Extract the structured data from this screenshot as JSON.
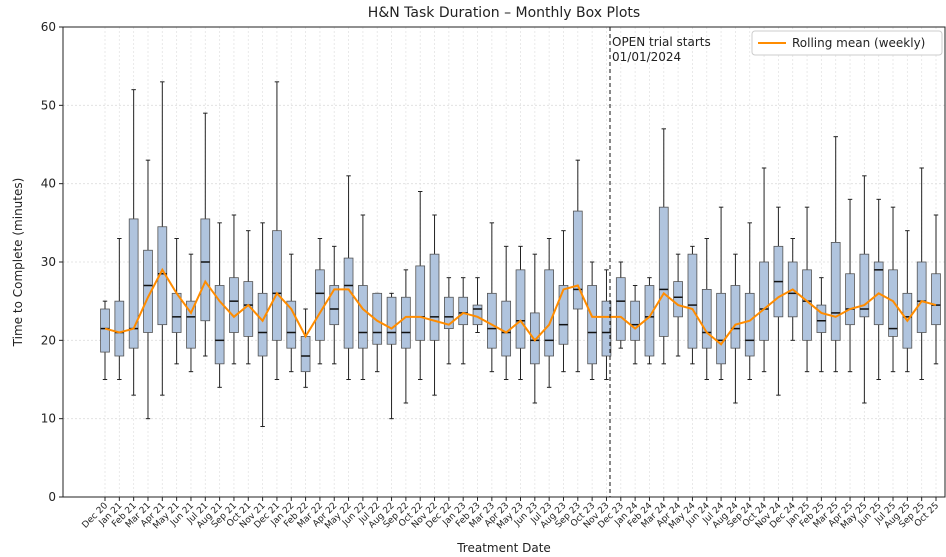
{
  "chart_data": {
    "type": "box",
    "title": "H&N Task Duration – Monthly Box Plots",
    "xlabel": "Treatment Date",
    "ylabel": "Time to Complete (minutes)",
    "categories": [
      "Dec 20",
      "Jan 21",
      "Feb 21",
      "Mar 21",
      "Apr 21",
      "May 21",
      "Jun 21",
      "Jul 21",
      "Aug 21",
      "Sep 21",
      "Oct 21",
      "Nov 21",
      "Dec 21",
      "Jan 22",
      "Feb 22",
      "Mar 22",
      "Apr 22",
      "May 22",
      "Jun 22",
      "Jul 22",
      "Aug 22",
      "Sep 22",
      "Oct 22",
      "Nov 22",
      "Dec 22",
      "Jan 23",
      "Feb 23",
      "Mar 23",
      "Apr 23",
      "May 23",
      "Jun 23",
      "Jul 23",
      "Aug 23",
      "Sep 23",
      "Oct 23",
      "Nov 23",
      "Dec 23",
      "Jan 24",
      "Feb 24",
      "Mar 24",
      "Apr 24",
      "May 24",
      "Jun 24",
      "Jul 24",
      "Aug 24",
      "Sep 24",
      "Oct 24",
      "Nov 24",
      "Dec 24",
      "Jan 25",
      "Feb 25",
      "Mar 25",
      "Apr 25",
      "May 25",
      "Jun 25",
      "Jul 25",
      "Aug 25",
      "Sep 25",
      "Oct 25"
    ],
    "box": {
      "color": "#b0c4de",
      "low": [
        15,
        15,
        13,
        10,
        13,
        17,
        16,
        18,
        14,
        17,
        17,
        9,
        15,
        16,
        14,
        17,
        17,
        15,
        15,
        16,
        10,
        12,
        15,
        13,
        17,
        17,
        21,
        16,
        15,
        15,
        12,
        14,
        16,
        16,
        15,
        15,
        19,
        17,
        17,
        17,
        18,
        17,
        15,
        15,
        12,
        15,
        16,
        13,
        20,
        16,
        16,
        16,
        16,
        12,
        15,
        16,
        16,
        15,
        17
      ],
      "q1": [
        18.5,
        18,
        19,
        21,
        22,
        21,
        19,
        22.5,
        17,
        21,
        20.5,
        18,
        20,
        19,
        16,
        20,
        22,
        19,
        19,
        19.5,
        19.5,
        19,
        20,
        20,
        21.5,
        22,
        22,
        19,
        18,
        19,
        17,
        18,
        19.5,
        24,
        17,
        18,
        20,
        20,
        18,
        20.5,
        23,
        19,
        19,
        17,
        19,
        18,
        20,
        23,
        23,
        20,
        21,
        20,
        22,
        23,
        22,
        20.5,
        19,
        21,
        22
      ],
      "median": [
        21.5,
        21,
        21.5,
        27,
        28.5,
        23,
        23,
        30,
        20,
        25,
        24.5,
        21,
        26,
        21,
        18,
        26,
        24,
        27,
        21,
        21,
        21,
        21,
        23,
        23,
        23,
        23.5,
        24,
        21.5,
        21,
        22.5,
        20,
        20,
        22,
        26.5,
        21,
        21,
        25,
        22,
        23,
        26.5,
        25.5,
        24.5,
        21,
        20,
        21.5,
        20,
        24,
        27.5,
        26,
        25,
        22.5,
        23.5,
        24,
        24,
        29,
        21.5,
        23,
        25,
        24.5
      ],
      "q3": [
        24,
        25,
        35.5,
        31.5,
        34.5,
        26,
        25,
        35.5,
        27,
        28,
        27.5,
        26,
        34,
        25,
        20.5,
        29,
        27,
        30.5,
        27,
        26,
        25.5,
        25.5,
        29.5,
        31,
        25.5,
        25.5,
        24.5,
        26,
        25,
        29,
        23.5,
        29,
        27,
        36.5,
        27,
        25,
        28,
        25,
        27,
        37,
        27.5,
        31,
        26.5,
        26,
        27,
        26,
        30,
        32,
        30,
        29,
        24.5,
        32.5,
        28.5,
        31,
        30,
        29,
        26,
        30,
        28.5
      ],
      "high": [
        25,
        33,
        52,
        43,
        53,
        33,
        31,
        49,
        35,
        36,
        34,
        35,
        53,
        31,
        24,
        33,
        32,
        41,
        36,
        26,
        26,
        29,
        39,
        36,
        28,
        28,
        28,
        35,
        32,
        32,
        31,
        33,
        34,
        43,
        30,
        29,
        30,
        27,
        28,
        47,
        31,
        32,
        33,
        37,
        31,
        35,
        42,
        37,
        33,
        37,
        28,
        46,
        38,
        41,
        38,
        37,
        34,
        42,
        36
      ]
    },
    "series": [
      {
        "name": "Rolling mean (weekly)",
        "color": "#ff8c00",
        "values": [
          21.5,
          21,
          21.5,
          25.5,
          29,
          26,
          23.5,
          27.5,
          25,
          23,
          24.5,
          22.5,
          26,
          24,
          20.5,
          23.5,
          26.5,
          26.5,
          24,
          22.5,
          21.5,
          23,
          23,
          22.5,
          22,
          23.5,
          23,
          22,
          21,
          22.5,
          20,
          22,
          26.5,
          27,
          23,
          23,
          23,
          21.5,
          23,
          26,
          24.5,
          24,
          21,
          19.5,
          22,
          22.5,
          24,
          25.5,
          26.5,
          25,
          23.5,
          23,
          24,
          24.5,
          26,
          25,
          22.5,
          25,
          24.5
        ]
      }
    ],
    "annotation": [
      "OPEN trial starts",
      "01/01/2024"
    ],
    "ylim": [
      0,
      60
    ],
    "yticks": [
      0,
      10,
      20,
      30,
      40,
      50,
      60
    ],
    "grid": true,
    "legend": "upper right"
  }
}
